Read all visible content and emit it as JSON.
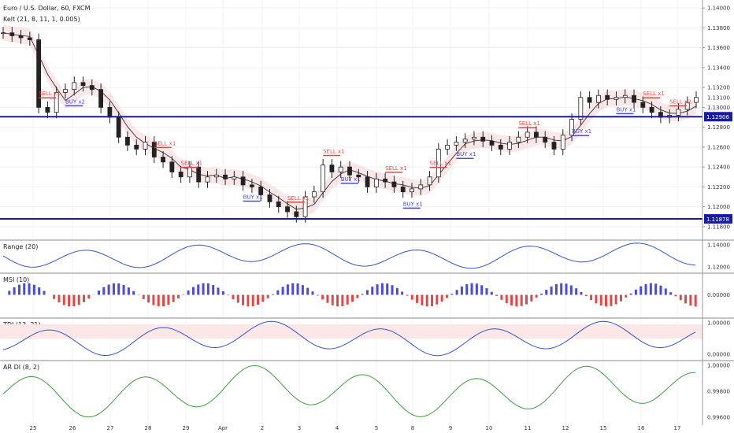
{
  "chart_data": {
    "type": "candlestick",
    "title": "Euro / U.S. Dollar, 60, FXCM",
    "main_indicator": "Kelt (21, 8, 11, 1, 0.005)",
    "x_ticks": [
      "25",
      "26",
      "27",
      "28",
      "29",
      "Apr",
      "2",
      "3",
      "4",
      "5",
      "8",
      "9",
      "10",
      "11",
      "12",
      "15",
      "16",
      "17"
    ],
    "y_ticks": [
      "1.14000",
      "1.13800",
      "1.13600",
      "1.13400",
      "1.13200",
      "1.13000",
      "1.12800",
      "1.12600",
      "1.12400",
      "1.12200",
      "1.12000",
      "1.11800"
    ],
    "ylim": [
      1.1172,
      1.1408
    ],
    "current_price": "1.13100",
    "level_lines": [
      {
        "label": "1.12906",
        "value": 1.12906
      },
      {
        "label": "1.11878",
        "value": 1.11878
      }
    ],
    "price_badges": [
      {
        "label": "1.12906",
        "value": 1.12906,
        "color": "#1a1aa8"
      },
      {
        "label": "1.11878",
        "value": 1.11878,
        "color": "#1a1aa8"
      }
    ],
    "close_series": [
      1.1375,
      1.1372,
      1.137,
      1.1368,
      1.13,
      1.1295,
      1.1315,
      1.1318,
      1.1325,
      1.1322,
      1.1318,
      1.13,
      1.129,
      1.127,
      1.1262,
      1.1258,
      1.1265,
      1.125,
      1.1245,
      1.1235,
      1.123,
      1.124,
      1.1225,
      1.123,
      1.1232,
      1.1228,
      1.123,
      1.1222,
      1.122,
      1.1212,
      1.1205,
      1.12,
      1.1195,
      1.119,
      1.121,
      1.1215,
      1.1242,
      1.1235,
      1.124,
      1.1232,
      1.123,
      1.122,
      1.1228,
      1.1225,
      1.122,
      1.1215,
      1.1218,
      1.1222,
      1.123,
      1.1258,
      1.1262,
      1.1265,
      1.1268,
      1.127,
      1.1266,
      1.1262,
      1.1258,
      1.1265,
      1.127,
      1.1275,
      1.127,
      1.1265,
      1.1258,
      1.1272,
      1.1288,
      1.131,
      1.1305,
      1.1312,
      1.1308,
      1.131,
      1.1312,
      1.1305,
      1.13,
      1.1295,
      1.129,
      1.1292,
      1.1298,
      1.1305,
      1.131
    ],
    "signals": [
      {
        "text": "SELL x1",
        "type": "sell",
        "i": 4
      },
      {
        "text": "BUY x2",
        "type": "buy",
        "i": 7
      },
      {
        "text": "SELL x1",
        "type": "sell",
        "i": 17
      },
      {
        "text": "SELL x1",
        "type": "sell",
        "i": 20
      },
      {
        "text": "BUY x1",
        "type": "buy",
        "i": 27
      },
      {
        "text": "SELL x1",
        "type": "sell",
        "i": 32
      },
      {
        "text": "SELL x1",
        "type": "sell",
        "i": 36
      },
      {
        "text": "BUY x1",
        "type": "buy",
        "i": 38
      },
      {
        "text": "SELL x1",
        "type": "sell",
        "i": 43
      },
      {
        "text": "BUY x1",
        "type": "buy",
        "i": 45
      },
      {
        "text": "SELL x1",
        "type": "sell",
        "i": 48
      },
      {
        "text": "BUY x1",
        "type": "buy",
        "i": 51
      },
      {
        "text": "SELL x1",
        "type": "sell",
        "i": 58
      },
      {
        "text": "BUY x1",
        "type": "buy",
        "i": 64
      },
      {
        "text": "BUY x1",
        "type": "buy",
        "i": 69
      },
      {
        "text": "SELL x1",
        "type": "sell",
        "i": 72
      },
      {
        "text": "SELL x2",
        "type": "sell",
        "i": 75
      }
    ],
    "panels": [
      {
        "name": "Range (20)",
        "ticks": [
          "1.14000",
          "1.12000"
        ],
        "kind": "bands"
      },
      {
        "name": "MSI (10)",
        "ticks": [
          "0.00000"
        ],
        "kind": "histogram"
      },
      {
        "name": "TDI (13, 21)",
        "ticks": [
          "1.00000",
          "0.00000"
        ],
        "kind": "oscillator"
      },
      {
        "name": "AR DI (8, 2)",
        "ticks": [
          "1.00000",
          "0.99800",
          "0.99600"
        ],
        "kind": "line"
      }
    ],
    "grid": true
  },
  "colors": {
    "bull": "#222222",
    "bear": "#222222",
    "level": "#1a1aa8",
    "sell": "#e04848",
    "buy": "#4a4ae0",
    "band_fill": "#f3c9c9"
  }
}
